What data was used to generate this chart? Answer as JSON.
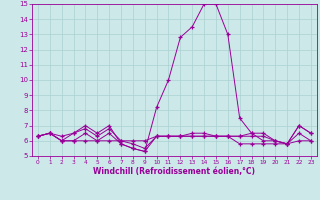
{
  "x": [
    0,
    1,
    2,
    3,
    4,
    5,
    6,
    7,
    8,
    9,
    10,
    11,
    12,
    13,
    14,
    15,
    16,
    17,
    18,
    19,
    20,
    21,
    22,
    23
  ],
  "line1": [
    6.3,
    6.5,
    6.3,
    6.5,
    7.0,
    6.5,
    7.0,
    5.8,
    5.5,
    5.3,
    8.2,
    10.0,
    12.8,
    13.5,
    15.0,
    15.0,
    13.0,
    7.5,
    6.5,
    6.5,
    6.0,
    5.8,
    7.0,
    6.5
  ],
  "line2": [
    6.3,
    6.5,
    6.0,
    6.0,
    6.5,
    6.0,
    6.5,
    5.8,
    5.5,
    5.3,
    6.3,
    6.3,
    6.3,
    6.3,
    6.3,
    6.3,
    6.3,
    6.3,
    6.3,
    6.3,
    6.0,
    5.8,
    6.5,
    6.0
  ],
  "line3": [
    6.3,
    6.5,
    6.0,
    6.5,
    6.8,
    6.3,
    6.8,
    6.0,
    5.8,
    5.5,
    6.3,
    6.3,
    6.3,
    6.5,
    6.5,
    6.3,
    6.3,
    6.3,
    6.5,
    6.0,
    6.0,
    5.8,
    7.0,
    6.5
  ],
  "line4": [
    6.3,
    6.5,
    6.0,
    6.0,
    6.0,
    6.0,
    6.0,
    6.0,
    6.0,
    6.0,
    6.3,
    6.3,
    6.3,
    6.3,
    6.3,
    6.3,
    6.3,
    5.8,
    5.8,
    5.8,
    5.8,
    5.8,
    6.0,
    6.0
  ],
  "line_color": "#990099",
  "bg_color": "#cce8e8",
  "grid_color": "#aad0d0",
  "xlabel": "Windchill (Refroidissement éolien,°C)",
  "ylim": [
    5,
    15
  ],
  "xlim": [
    -0.5,
    23.5
  ],
  "yticks": [
    5,
    6,
    7,
    8,
    9,
    10,
    11,
    12,
    13,
    14,
    15
  ],
  "xticks": [
    0,
    1,
    2,
    3,
    4,
    5,
    6,
    7,
    8,
    9,
    10,
    11,
    12,
    13,
    14,
    15,
    16,
    17,
    18,
    19,
    20,
    21,
    22,
    23
  ]
}
